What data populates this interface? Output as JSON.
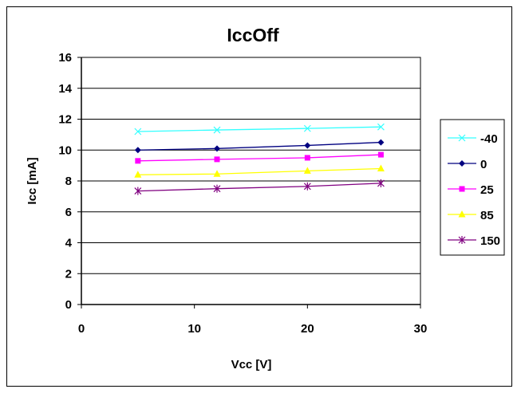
{
  "chart_data": {
    "type": "line",
    "title": "IccOff",
    "xlabel": "Vcc [V]",
    "ylabel": "Icc [mA]",
    "xlim": [
      0,
      30
    ],
    "ylim": [
      0,
      16
    ],
    "xticks": [
      0,
      10,
      20,
      30
    ],
    "yticks": [
      0,
      2,
      4,
      6,
      8,
      10,
      12,
      14,
      16
    ],
    "grid": "horizontal",
    "legend_position": "right",
    "x": [
      5,
      12,
      20,
      26.5
    ],
    "series": [
      {
        "name": "-40",
        "values": [
          11.2,
          11.3,
          11.4,
          11.5
        ],
        "color": "#33ffff",
        "marker": "x"
      },
      {
        "name": "0",
        "values": [
          10.0,
          10.1,
          10.3,
          10.5
        ],
        "color": "#000080",
        "marker": "diamond"
      },
      {
        "name": "25",
        "values": [
          9.3,
          9.4,
          9.5,
          9.7
        ],
        "color": "#ff00ff",
        "marker": "square"
      },
      {
        "name": "85",
        "values": [
          8.4,
          8.45,
          8.65,
          8.8
        ],
        "color": "#ffff00",
        "marker": "triangle"
      },
      {
        "name": "150",
        "values": [
          7.35,
          7.5,
          7.65,
          7.85
        ],
        "color": "#800080",
        "marker": "asterisk"
      }
    ]
  }
}
